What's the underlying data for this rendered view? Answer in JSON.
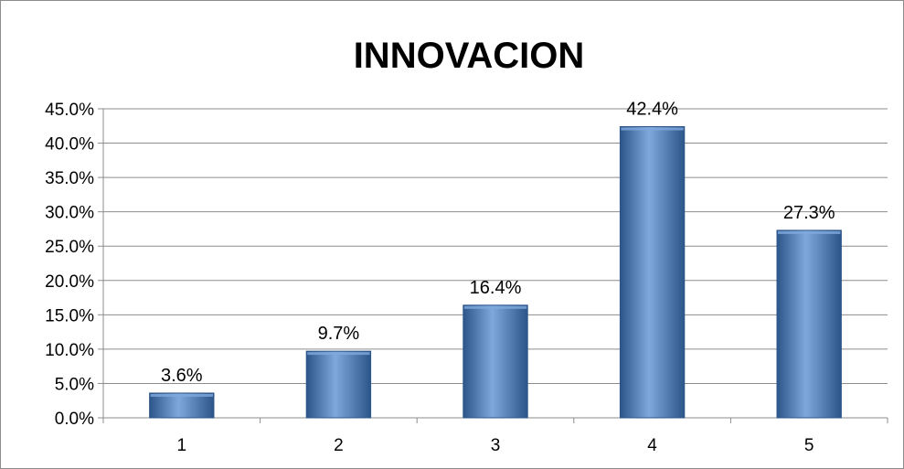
{
  "chart_data": {
    "type": "bar",
    "title": "INNOVACION",
    "categories": [
      "1",
      "2",
      "3",
      "4",
      "5"
    ],
    "values": [
      3.6,
      9.7,
      16.4,
      42.4,
      27.3
    ],
    "data_labels": [
      "3.6%",
      "9.7%",
      "16.4%",
      "42.4%",
      "27.3%"
    ],
    "yticks": [
      0,
      5,
      10,
      15,
      20,
      25,
      30,
      35,
      40,
      45
    ],
    "ytick_labels": [
      "0.0%",
      "5.0%",
      "10.0%",
      "15.0%",
      "20.0%",
      "25.0%",
      "30.0%",
      "35.0%",
      "40.0%",
      "45.0%"
    ],
    "ylim": [
      0,
      45
    ],
    "xlabel": "",
    "ylabel": "",
    "grid": true,
    "legend": "none",
    "colors": {
      "bar": "#4a7ebb",
      "bar_light": "#7fa9dd",
      "bar_dark": "#2c5589",
      "grid": "#8c8c8c",
      "axis": "#8c8c8c"
    }
  }
}
